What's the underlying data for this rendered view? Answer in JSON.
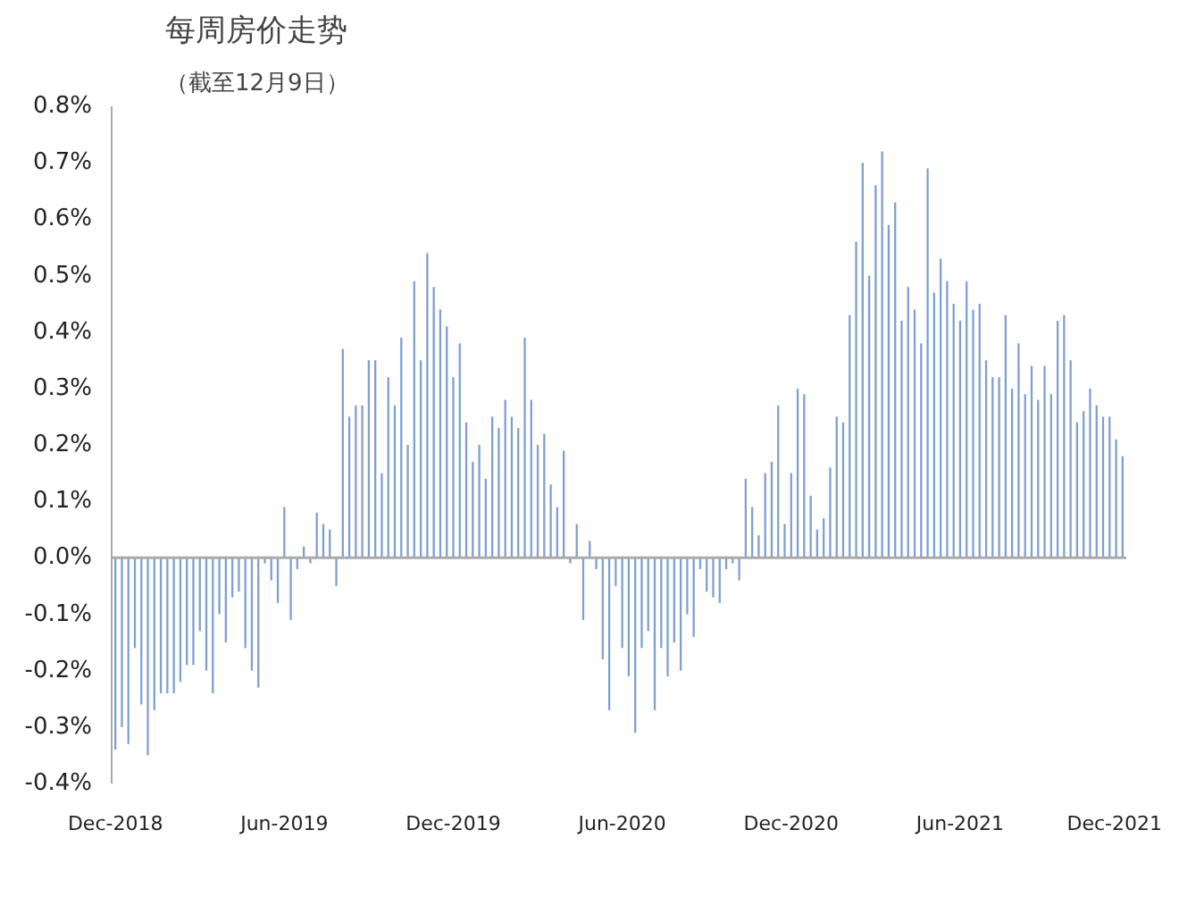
{
  "chart_data": {
    "type": "bar",
    "title": "每周房价走势",
    "subtitle": "（截至12月9日）",
    "x": [
      "2018-12-20",
      "2018-12-27",
      "2019-01-03",
      "2019-01-10",
      "2019-01-17",
      "2019-01-24",
      "2019-01-31",
      "2019-02-07",
      "2019-02-14",
      "2019-02-21",
      "2019-02-28",
      "2019-03-07",
      "2019-03-14",
      "2019-03-21",
      "2019-03-28",
      "2019-04-04",
      "2019-04-11",
      "2019-04-18",
      "2019-04-25",
      "2019-05-02",
      "2019-05-09",
      "2019-05-16",
      "2019-05-23",
      "2019-05-30",
      "2019-06-06",
      "2019-06-13",
      "2019-06-20",
      "2019-06-27",
      "2019-07-04",
      "2019-07-11",
      "2019-07-18",
      "2019-07-25",
      "2019-08-01",
      "2019-08-08",
      "2019-08-15",
      "2019-08-22",
      "2019-08-29",
      "2019-09-05",
      "2019-09-12",
      "2019-09-19",
      "2019-09-26",
      "2019-10-03",
      "2019-10-10",
      "2019-10-17",
      "2019-10-24",
      "2019-10-31",
      "2019-11-07",
      "2019-11-14",
      "2019-11-21",
      "2019-11-28",
      "2019-12-05",
      "2019-12-12",
      "2019-12-19",
      "2019-12-26",
      "2020-01-02",
      "2020-01-09",
      "2020-01-16",
      "2020-01-23",
      "2020-01-30",
      "2020-02-06",
      "2020-02-13",
      "2020-02-20",
      "2020-02-27",
      "2020-03-05",
      "2020-03-12",
      "2020-03-19",
      "2020-03-26",
      "2020-04-02",
      "2020-04-09",
      "2020-04-16",
      "2020-04-23",
      "2020-04-30",
      "2020-05-07",
      "2020-05-14",
      "2020-05-21",
      "2020-05-28",
      "2020-06-04",
      "2020-06-11",
      "2020-06-18",
      "2020-06-25",
      "2020-07-02",
      "2020-07-09",
      "2020-07-16",
      "2020-07-23",
      "2020-07-30",
      "2020-08-06",
      "2020-08-13",
      "2020-08-20",
      "2020-08-27",
      "2020-09-03",
      "2020-09-10",
      "2020-09-17",
      "2020-09-24",
      "2020-10-01",
      "2020-10-08",
      "2020-10-15",
      "2020-10-22",
      "2020-10-29",
      "2020-11-05",
      "2020-11-12",
      "2020-11-19",
      "2020-11-26",
      "2020-12-03",
      "2020-12-10",
      "2020-12-17",
      "2020-12-24",
      "2020-12-31",
      "2021-01-07",
      "2021-01-14",
      "2021-01-21",
      "2021-01-28",
      "2021-02-04",
      "2021-02-11",
      "2021-02-18",
      "2021-02-25",
      "2021-03-04",
      "2021-03-11",
      "2021-03-18",
      "2021-03-25",
      "2021-04-01",
      "2021-04-08",
      "2021-04-15",
      "2021-04-22",
      "2021-04-29",
      "2021-05-06",
      "2021-05-13",
      "2021-05-20",
      "2021-05-27",
      "2021-06-03",
      "2021-06-10",
      "2021-06-17",
      "2021-06-24",
      "2021-07-01",
      "2021-07-08",
      "2021-07-15",
      "2021-07-22",
      "2021-07-29",
      "2021-08-05",
      "2021-08-12",
      "2021-08-19",
      "2021-08-26",
      "2021-09-02",
      "2021-09-09",
      "2021-09-16",
      "2021-09-23",
      "2021-09-30",
      "2021-10-07",
      "2021-10-14",
      "2021-10-21",
      "2021-10-28",
      "2021-11-04",
      "2021-11-11",
      "2021-11-18",
      "2021-11-25",
      "2021-12-02",
      "2021-12-09"
    ],
    "values": [
      -0.34,
      -0.3,
      -0.33,
      -0.16,
      -0.26,
      -0.35,
      -0.27,
      -0.24,
      -0.24,
      -0.24,
      -0.22,
      -0.19,
      -0.19,
      -0.13,
      -0.2,
      -0.24,
      -0.1,
      -0.15,
      -0.07,
      -0.06,
      -0.16,
      -0.2,
      -0.23,
      -0.01,
      -0.04,
      -0.08,
      0.09,
      -0.11,
      -0.02,
      0.02,
      -0.01,
      0.08,
      0.06,
      0.05,
      -0.05,
      0.37,
      0.25,
      0.27,
      0.27,
      0.35,
      0.35,
      0.15,
      0.32,
      0.27,
      0.39,
      0.2,
      0.49,
      0.35,
      0.54,
      0.48,
      0.44,
      0.41,
      0.32,
      0.38,
      0.24,
      0.17,
      0.2,
      0.14,
      0.25,
      0.23,
      0.28,
      0.25,
      0.23,
      0.39,
      0.28,
      0.2,
      0.22,
      0.13,
      0.09,
      0.19,
      -0.01,
      0.06,
      -0.11,
      0.03,
      -0.02,
      -0.18,
      -0.27,
      -0.05,
      -0.16,
      -0.21,
      -0.31,
      -0.16,
      -0.13,
      -0.27,
      -0.16,
      -0.21,
      -0.15,
      -0.2,
      -0.1,
      -0.14,
      -0.02,
      -0.06,
      -0.07,
      -0.08,
      -0.02,
      -0.01,
      -0.04,
      0.14,
      0.09,
      0.04,
      0.15,
      0.17,
      0.27,
      0.06,
      0.15,
      0.3,
      0.29,
      0.11,
      0.05,
      0.07,
      0.16,
      0.25,
      0.24,
      0.43,
      0.56,
      0.7,
      0.5,
      0.66,
      0.72,
      0.59,
      0.63,
      0.42,
      0.48,
      0.44,
      0.38,
      0.69,
      0.47,
      0.53,
      0.49,
      0.45,
      0.42,
      0.49,
      0.44,
      0.45,
      0.35,
      0.32,
      0.32,
      0.43,
      0.3,
      0.38,
      0.29,
      0.34,
      0.28,
      0.34,
      0.29,
      0.42,
      0.43,
      0.35,
      0.24,
      0.26,
      0.3,
      0.27,
      0.25,
      0.25,
      0.21,
      0.18
    ],
    "color": "#7f9fcf",
    "xlim": [
      "2018-12-16",
      "2021-12-13"
    ],
    "xticks": [
      {
        "value": "2018-12-20",
        "label": "Dec-2018"
      },
      {
        "value": "2019-06-20",
        "label": "Jun-2019"
      },
      {
        "value": "2019-12-19",
        "label": "Dec-2019"
      },
      {
        "value": "2020-06-18",
        "label": "Jun-2020"
      },
      {
        "value": "2020-12-17",
        "label": "Dec-2020"
      },
      {
        "value": "2021-06-17",
        "label": "Jun-2021"
      },
      {
        "value": "2021-12-09",
        "label": "Dec-2021"
      }
    ],
    "ylim": [
      -0.4,
      0.8
    ],
    "yticks": [
      {
        "value": -0.4,
        "label": "-0.4%"
      },
      {
        "value": -0.3,
        "label": "-0.3%"
      },
      {
        "value": -0.2,
        "label": "-0.2%"
      },
      {
        "value": -0.1,
        "label": "-0.1%"
      },
      {
        "value": 0,
        "label": "0.0%"
      },
      {
        "value": 0.1,
        "label": "0.1%"
      },
      {
        "value": 0.2,
        "label": "0.2%"
      },
      {
        "value": 0.3,
        "label": "0.3%"
      },
      {
        "value": 0.4,
        "label": "0.4%"
      },
      {
        "value": 0.5,
        "label": "0.5%"
      },
      {
        "value": 0.6,
        "label": "0.6%"
      },
      {
        "value": 0.7,
        "label": "0.7%"
      },
      {
        "value": 0.8,
        "label": "0.8%"
      }
    ],
    "ref_lines": [
      {
        "axis": "y",
        "value": 0,
        "color": "#aaaaaa"
      }
    ],
    "grid": false
  }
}
